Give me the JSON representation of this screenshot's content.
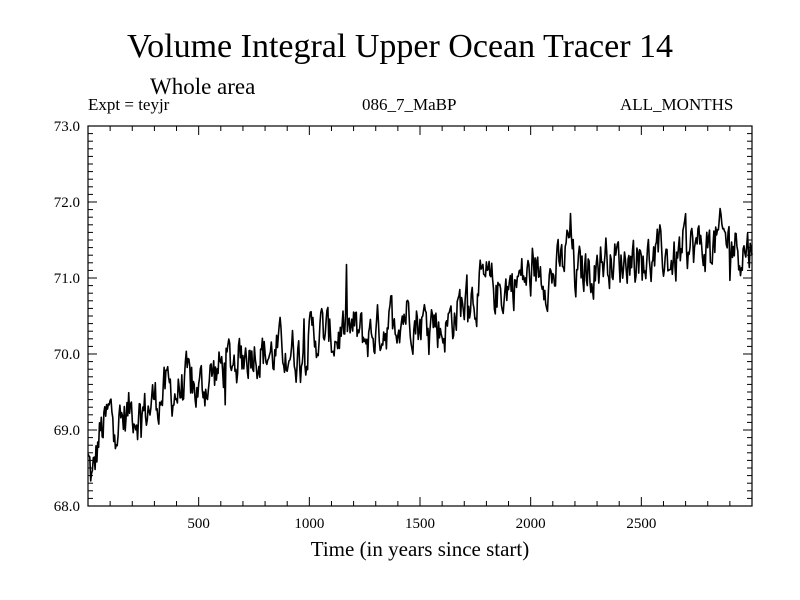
{
  "header": {
    "title": "Volume Integral Upper Ocean Tracer 14",
    "subtitle": "Whole area",
    "expt": "Expt = teyjr",
    "run_id": "086_7_MaBP",
    "months": "ALL_MONTHS"
  },
  "chart_data": {
    "type": "line",
    "title": "Volume Integral Upper Ocean Tracer 14",
    "xlabel": "Time (in years since start)",
    "ylabel": "",
    "xlim": [
      0,
      3000
    ],
    "ylim": [
      68.0,
      73.0
    ],
    "x_ticks": [
      500,
      1000,
      1500,
      2000,
      2500
    ],
    "x_tick_labels": [
      "500",
      "1000",
      "1500",
      "2000",
      "2500"
    ],
    "y_ticks": [
      68.0,
      69.0,
      70.0,
      71.0,
      72.0,
      73.0
    ],
    "y_tick_labels": [
      "68.0",
      "69.0",
      "70.0",
      "71.0",
      "72.0",
      "73.0"
    ],
    "line_color": "#000000",
    "series": [
      {
        "name": "teyjr",
        "description": "noisy annual series rising from ~68.8 to ~71.5",
        "x": [
          0,
          20,
          50,
          100,
          150,
          200,
          250,
          300,
          350,
          400,
          450,
          500,
          550,
          600,
          650,
          700,
          750,
          800,
          850,
          900,
          950,
          1000,
          1050,
          1100,
          1150,
          1200,
          1250,
          1300,
          1350,
          1400,
          1450,
          1500,
          1550,
          1600,
          1650,
          1700,
          1750,
          1800,
          1850,
          1900,
          1950,
          2000,
          2050,
          2100,
          2150,
          2180,
          2200,
          2250,
          2300,
          2350,
          2400,
          2450,
          2500,
          2550,
          2600,
          2650,
          2700,
          2750,
          2800,
          2850,
          2900,
          2950,
          3000
        ],
        "values": [
          68.6,
          68.3,
          68.9,
          69.2,
          69.1,
          69.3,
          69.2,
          69.4,
          69.5,
          69.5,
          69.6,
          69.5,
          69.7,
          69.8,
          69.9,
          70.0,
          70.1,
          70.0,
          70.0,
          70.1,
          70.0,
          70.2,
          70.3,
          70.2,
          70.3,
          70.3,
          70.2,
          70.3,
          70.4,
          70.5,
          70.6,
          70.4,
          70.5,
          70.3,
          70.5,
          70.7,
          70.8,
          70.9,
          70.8,
          70.9,
          71.0,
          71.0,
          71.1,
          71.0,
          71.2,
          71.6,
          71.0,
          71.1,
          71.2,
          71.3,
          71.2,
          71.3,
          71.3,
          71.2,
          71.3,
          71.2,
          71.4,
          71.4,
          71.4,
          71.5,
          71.5,
          71.4,
          71.4
        ]
      }
    ]
  }
}
